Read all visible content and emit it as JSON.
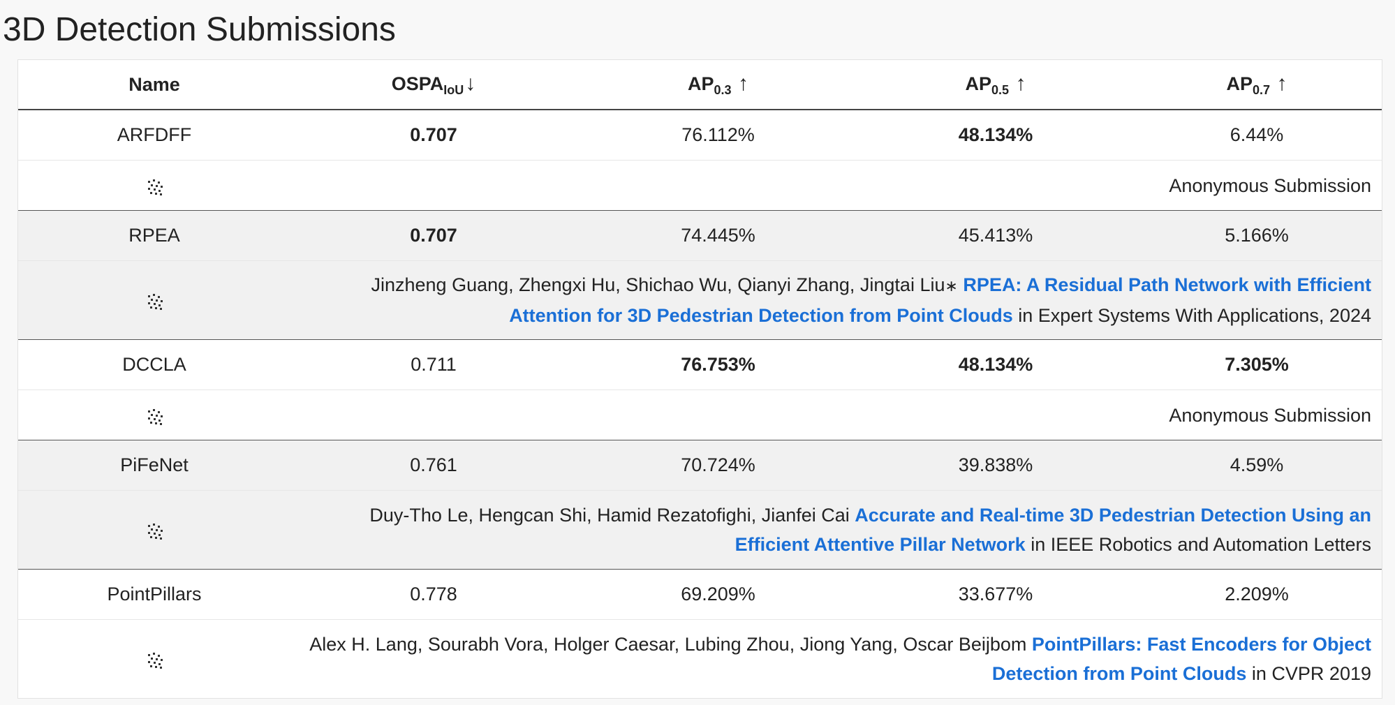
{
  "page_title": "3D Detection Submissions",
  "columns": {
    "name": "Name",
    "ospa": {
      "base": "OSPA",
      "sub": "IoU",
      "arrow": "↓"
    },
    "ap03": {
      "base": "AP",
      "sub": "0.3",
      "arrow": "↑"
    },
    "ap05": {
      "base": "AP",
      "sub": "0.5",
      "arrow": "↑"
    },
    "ap07": {
      "base": "AP",
      "sub": "0.7",
      "arrow": "↑"
    }
  },
  "rows": [
    {
      "name": "ARFDFF",
      "ospa": "0.707",
      "ap03": "76.112%",
      "ap05": "48.134%",
      "ap07": "6.44%",
      "bold": [
        "ospa",
        "ap05"
      ],
      "authors": "Anonymous Submission",
      "title": "",
      "venue": ""
    },
    {
      "name": "RPEA",
      "ospa": "0.707",
      "ap03": "74.445%",
      "ap05": "45.413%",
      "ap07": "5.166%",
      "bold": [
        "ospa"
      ],
      "authors": "Jinzheng Guang, Zhengxi Hu, Shichao Wu, Qianyi Zhang, Jingtai Liu",
      "asterisk": "∗",
      "title": "RPEA: A Residual Path Network with Efficient Attention for 3D Pedestrian Detection from Point Clouds",
      "venue": "in Expert Systems With Applications, 2024"
    },
    {
      "name": "DCCLA",
      "ospa": "0.711",
      "ap03": "76.753%",
      "ap05": "48.134%",
      "ap07": "7.305%",
      "bold": [
        "ap03",
        "ap05",
        "ap07"
      ],
      "authors": "Anonymous Submission",
      "title": "",
      "venue": ""
    },
    {
      "name": "PiFeNet",
      "ospa": "0.761",
      "ap03": "70.724%",
      "ap05": "39.838%",
      "ap07": "4.59%",
      "bold": [],
      "authors": "Duy-Tho Le, Hengcan Shi, Hamid Rezatofighi, Jianfei Cai",
      "title": "Accurate and Real-time 3D Pedestrian Detection Using an Efficient Attentive Pillar Network",
      "venue": "in IEEE Robotics and Automation Letters"
    },
    {
      "name": "PointPillars",
      "ospa": "0.778",
      "ap03": "69.209%",
      "ap05": "33.677%",
      "ap07": "2.209%",
      "bold": [],
      "authors": "Alex H. Lang, Sourabh Vora, Holger Caesar, Lubing Zhou, Jiong Yang, Oscar Beijbom",
      "title": "PointPillars: Fast Encoders for Object Detection from Point Clouds",
      "venue": "in CVPR 2019"
    }
  ],
  "colors": {
    "link": "#1a6fd6",
    "shade": "#f1f1f1",
    "text": "#222222"
  },
  "icons": {
    "detail": "scatter-dots-icon"
  }
}
